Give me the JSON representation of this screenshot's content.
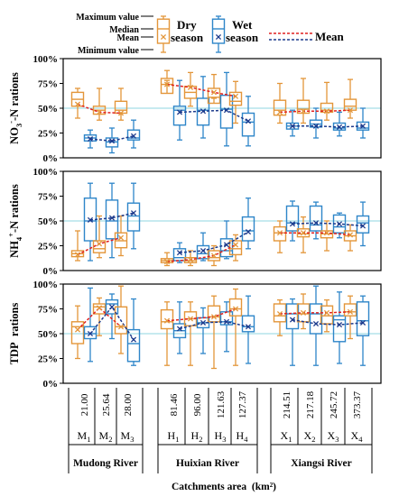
{
  "colors": {
    "dry": "#E3963A",
    "wet": "#2E86C9",
    "dry_mean": "#E02020",
    "wet_mean": "#1C3A8C",
    "grid": "#8FD4E0"
  },
  "legend": {
    "box_labels": [
      "Maximum value",
      "Median",
      "Mean",
      "Minimum value"
    ],
    "dry_label_1": "Dry",
    "dry_label_2": "season",
    "wet_label_1": "Wet",
    "wet_label_2": "season",
    "mean_label": "Mean"
  },
  "chart_data": {
    "type": "box",
    "yticks": [
      "0%",
      "25%",
      "50%",
      "75%",
      "100%"
    ],
    "ylim": [
      0,
      100
    ],
    "xlabel": "Catchments area  (km²)",
    "areas": [
      "21.00",
      "25.64",
      "28.00",
      "81.46",
      "96.00",
      "121.63",
      "127.37",
      "214.51",
      "217.18",
      "245.72",
      "373.37"
    ],
    "site_letters": [
      "M",
      "M",
      "M",
      "H",
      "H",
      "H",
      "H",
      "X",
      "X",
      "X",
      "X"
    ],
    "site_subs": [
      "1",
      "2",
      "3",
      "1",
      "2",
      "3",
      "4",
      "1",
      "2",
      "3",
      "4"
    ],
    "groups": [
      {
        "name": "Mudong River",
        "start": 0,
        "end": 2
      },
      {
        "name": "Huixian River",
        "start": 3,
        "end": 6
      },
      {
        "name": "Xiangsi River",
        "start": 7,
        "end": 10
      }
    ],
    "panels": [
      {
        "ylabel_main": "NO",
        "ylabel_sub": "3",
        "ylabel_sup": "-",
        "ylabel_rest": "-N rations",
        "dry": [
          [
            40,
            52,
            59,
            66,
            70
          ],
          [
            38,
            44,
            48,
            52,
            70
          ],
          [
            38,
            45,
            48,
            57,
            70
          ],
          [
            78,
            65,
            74,
            80,
            88
          ],
          [
            52,
            60,
            66,
            72,
            86
          ],
          [
            60,
            55,
            61,
            70,
            84
          ],
          [
            35,
            53,
            57,
            66,
            77
          ],
          [
            35,
            43,
            48,
            58,
            75
          ],
          [
            35,
            45,
            49,
            58,
            80
          ],
          [
            38,
            46,
            48,
            55,
            76
          ],
          [
            40,
            48,
            52,
            59,
            79
          ]
        ],
        "wet": [
          [
            10,
            17,
            20,
            23,
            28
          ],
          [
            5,
            11,
            16,
            20,
            30
          ],
          [
            10,
            18,
            20,
            28,
            38
          ],
          [
            18,
            33,
            48,
            52,
            78
          ],
          [
            20,
            33,
            48,
            60,
            82
          ],
          [
            12,
            30,
            49,
            63,
            86
          ],
          [
            12,
            22,
            36,
            45,
            62
          ],
          [
            22,
            29,
            32,
            35,
            48
          ],
          [
            20,
            31,
            34,
            38,
            50
          ],
          [
            22,
            28,
            30,
            35,
            46
          ],
          [
            20,
            28,
            30,
            36,
            50
          ]
        ],
        "dry_mean": [
          54,
          46,
          45,
          74,
          71,
          66,
          62,
          46,
          47,
          47,
          48
        ],
        "wet_mean": [
          19,
          17,
          22,
          46,
          47,
          48,
          37,
          32,
          32,
          31,
          32
        ]
      },
      {
        "ylabel_main": "NH",
        "ylabel_sub": "4",
        "ylabel_sup": "+",
        "ylabel_rest": "-N rations",
        "dry": [
          [
            10,
            14,
            17,
            20,
            40
          ],
          [
            13,
            18,
            22,
            30,
            55
          ],
          [
            15,
            23,
            30,
            38,
            55
          ],
          [
            5,
            8,
            10,
            12,
            18
          ],
          [
            5,
            8,
            10,
            13,
            20
          ],
          [
            5,
            10,
            13,
            20,
            25
          ],
          [
            10,
            16,
            22,
            30,
            36
          ],
          [
            18,
            30,
            38,
            44,
            50
          ],
          [
            18,
            34,
            37,
            42,
            54
          ],
          [
            20,
            33,
            37,
            40,
            50
          ],
          [
            20,
            30,
            35,
            40,
            46
          ]
        ],
        "wet": [
          [
            10,
            30,
            50,
            73,
            88
          ],
          [
            13,
            32,
            50,
            71,
            88
          ],
          [
            22,
            40,
            55,
            68,
            88
          ],
          [
            8,
            10,
            13,
            22,
            28
          ],
          [
            10,
            12,
            17,
            25,
            38
          ],
          [
            12,
            14,
            20,
            32,
            50
          ],
          [
            22,
            30,
            40,
            54,
            73
          ],
          [
            30,
            40,
            48,
            65,
            70
          ],
          [
            32,
            40,
            46,
            65,
            69
          ],
          [
            33,
            38,
            44,
            56,
            58
          ],
          [
            25,
            38,
            48,
            55,
            69
          ]
        ],
        "dry_mean": [
          16,
          27,
          33,
          9,
          11,
          15,
          26,
          38,
          38,
          38,
          36
        ],
        "wet_mean": [
          51,
          53,
          58,
          18,
          20,
          26,
          39,
          47,
          48,
          47,
          45
        ]
      },
      {
        "ylabel_main": "TDP  rations",
        "ylabel_sub": "",
        "ylabel_sup": "",
        "ylabel_rest": "",
        "dry": [
          [
            25,
            40,
            57,
            62,
            78
          ],
          [
            48,
            70,
            77,
            80,
            86
          ],
          [
            30,
            50,
            57,
            77,
            98
          ],
          [
            18,
            55,
            62,
            74,
            82
          ],
          [
            18,
            58,
            65,
            72,
            82
          ],
          [
            15,
            62,
            67,
            78,
            88
          ],
          [
            18,
            68,
            75,
            85,
            95
          ],
          [
            48,
            62,
            68,
            80,
            84
          ],
          [
            55,
            62,
            70,
            80,
            90
          ],
          [
            52,
            60,
            68,
            78,
            84
          ],
          [
            45,
            68,
            72,
            80,
            88
          ]
        ],
        "wet": [
          [
            22,
            45,
            50,
            57,
            96
          ],
          [
            45,
            70,
            80,
            84,
            90
          ],
          [
            18,
            22,
            40,
            54,
            85
          ],
          [
            30,
            46,
            53,
            60,
            82
          ],
          [
            30,
            56,
            61,
            66,
            76
          ],
          [
            32,
            59,
            62,
            72,
            82
          ],
          [
            20,
            52,
            57,
            68,
            88
          ],
          [
            18,
            55,
            70,
            80,
            85
          ],
          [
            18,
            50,
            70,
            80,
            98
          ],
          [
            20,
            42,
            64,
            68,
            92
          ],
          [
            18,
            48,
            63,
            82,
            88
          ]
        ],
        "dry_mean": [
          54,
          76,
          57,
          63,
          65,
          67,
          75,
          70,
          71,
          71,
          72
        ],
        "wet_mean": [
          50,
          77,
          44,
          55,
          61,
          62,
          57,
          64,
          60,
          59,
          61
        ]
      }
    ]
  }
}
